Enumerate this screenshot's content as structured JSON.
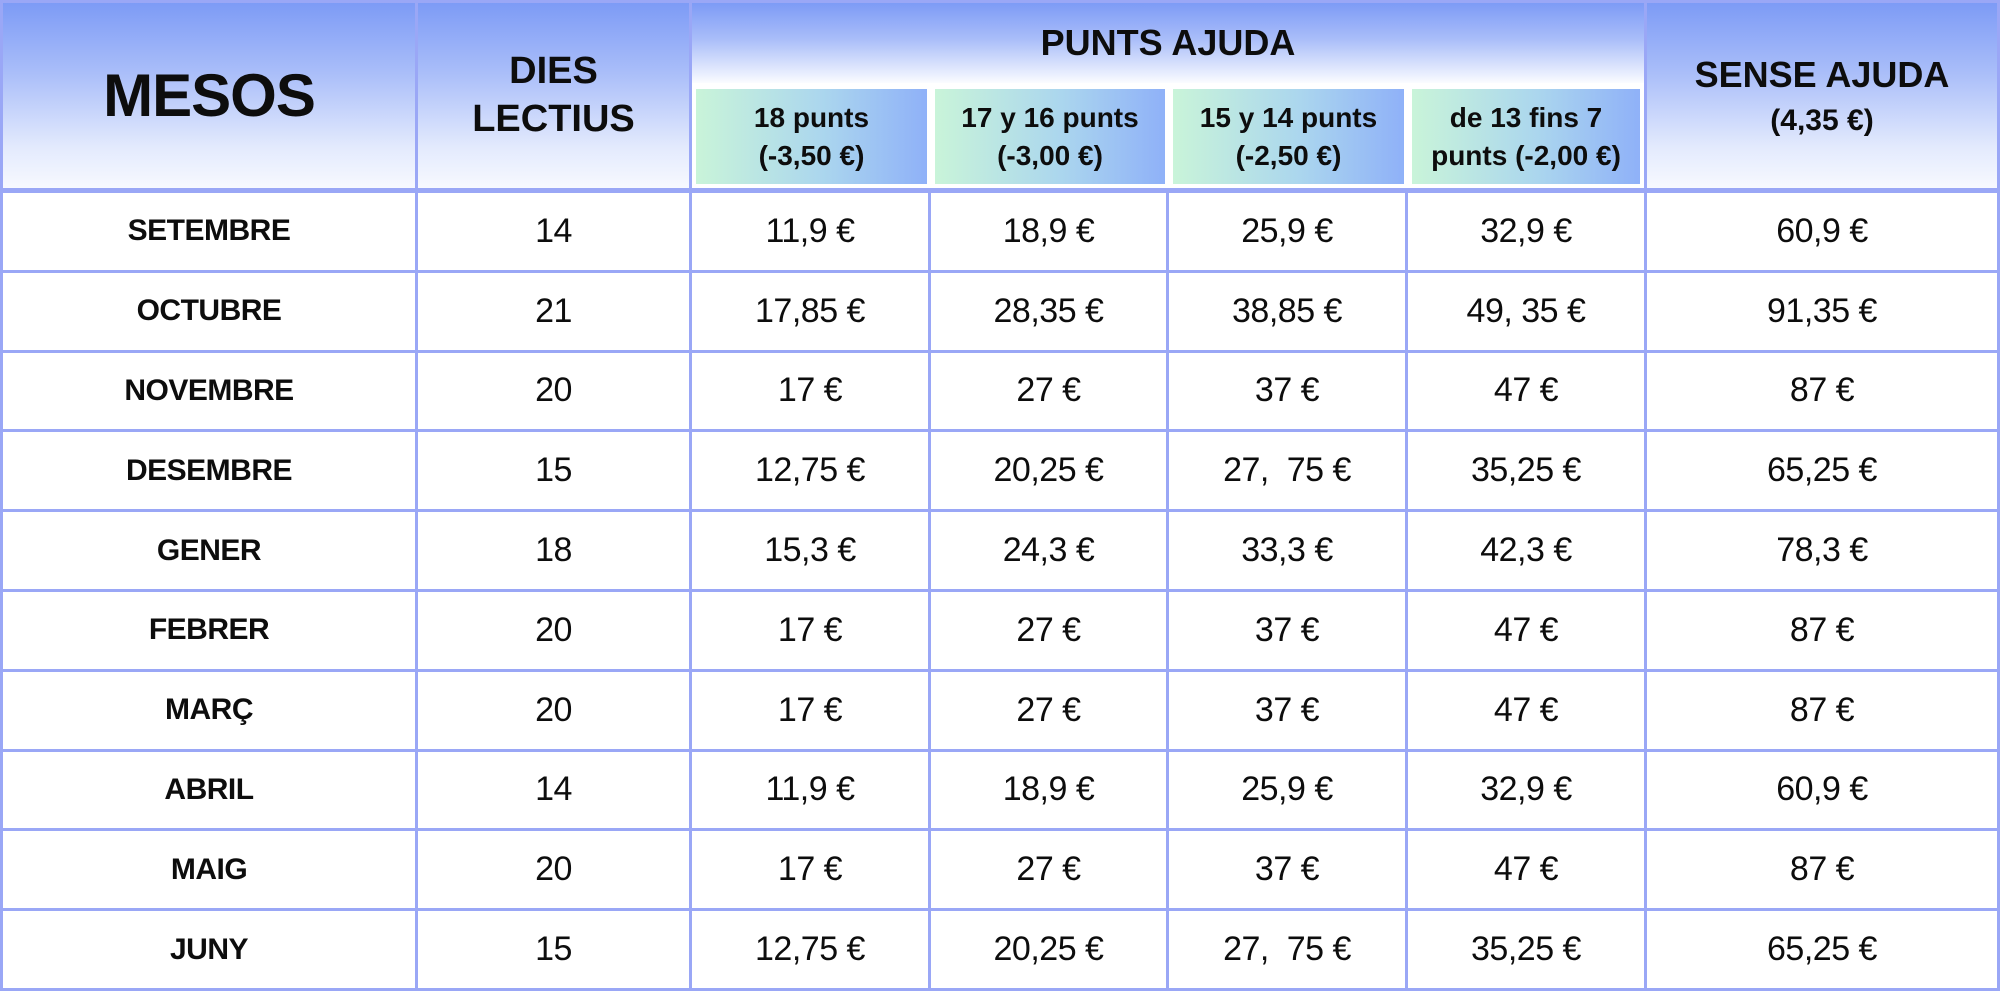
{
  "table": {
    "headers": {
      "mesos": "MESOS",
      "dies_lectius": "DIES\nLECTIUS",
      "punts_ajuda": "PUNTS AJUDA",
      "sub_columns": [
        "18 punts\n(-3,50 €)",
        "17 y 16 punts\n(-3,00 €)",
        "15 y 14 punts\n(-2,50 €)",
        "de 13 fins 7\npunts (-2,00 €)"
      ],
      "sense_ajuda": "SENSE AJUDA",
      "sense_ajuda_sub": "(4,35 €)"
    },
    "rows": [
      {
        "mes": "SETEMBRE",
        "dies": "14",
        "c1": "11,9 €",
        "c2": "18,9 €",
        "c3": "25,9 €",
        "c4": "32,9 €",
        "sense": "60,9 €"
      },
      {
        "mes": "OCTUBRE",
        "dies": "21",
        "c1": "17,85 €",
        "c2": "28,35 €",
        "c3": "38,85 €",
        "c4": "49, 35 €",
        "sense": "91,35 €"
      },
      {
        "mes": "NOVEMBRE",
        "dies": "20",
        "c1": "17 €",
        "c2": "27 €",
        "c3": "37 €",
        "c4": "47 €",
        "sense": "87 €"
      },
      {
        "mes": "DESEMBRE",
        "dies": "15",
        "c1": "12,75 €",
        "c2": "20,25 €",
        "c3": "27,  75 €",
        "c4": "35,25 €",
        "sense": "65,25 €"
      },
      {
        "mes": "GENER",
        "dies": "18",
        "c1": "15,3 €",
        "c2": "24,3 €",
        "c3": "33,3 €",
        "c4": "42,3 €",
        "sense": "78,3 €"
      },
      {
        "mes": "FEBRER",
        "dies": "20",
        "c1": "17 €",
        "c2": "27 €",
        "c3": "37 €",
        "c4": "47 €",
        "sense": "87 €"
      },
      {
        "mes": "MARÇ",
        "dies": "20",
        "c1": "17 €",
        "c2": "27 €",
        "c3": "37 €",
        "c4": "47 €",
        "sense": "87 €"
      },
      {
        "mes": "ABRIL",
        "dies": "14",
        "c1": "11,9 €",
        "c2": "18,9 €",
        "c3": "25,9 €",
        "c4": "32,9 €",
        "sense": "60,9 €"
      },
      {
        "mes": "MAIG",
        "dies": "20",
        "c1": "17 €",
        "c2": "27 €",
        "c3": "37 €",
        "c4": "47 €",
        "sense": "87 €"
      },
      {
        "mes": "JUNY",
        "dies": "15",
        "c1": "12,75 €",
        "c2": "20,25 €",
        "c3": "27,  75 €",
        "c4": "35,25 €",
        "sense": "65,25 €"
      }
    ]
  },
  "colors": {
    "border": "#9aa7f6",
    "header_blue_top": "#7d9bf6",
    "header_fade_bottom": "#f7f9ff",
    "subheader_green": "#c9f4d9",
    "subheader_blue": "#8fb1f8",
    "text": "#0d0d0d",
    "cell_background": "#ffffff"
  }
}
